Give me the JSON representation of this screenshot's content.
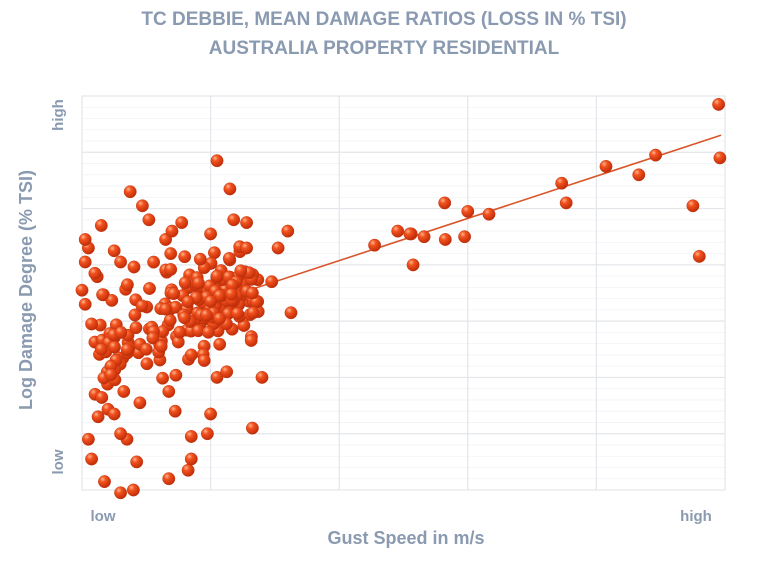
{
  "chart_data": {
    "type": "scatter",
    "title": "TC DEBBIE, MEAN DAMAGE RATIOS (LOSS IN % TSI)",
    "subtitle": "AUSTRALIA PROPERTY RESIDENTIAL",
    "xlabel": "Gust Speed in m/s",
    "ylabel": "Log Damage Degree (% TSI)",
    "x_tick_labels": [
      "low",
      "high"
    ],
    "y_tick_labels": [
      "low",
      "high"
    ],
    "xlim": [
      0,
      10
    ],
    "ylim": [
      0,
      7
    ],
    "grid": true,
    "colors": {
      "points": "#e8401a",
      "trendline": "#d9562b",
      "text": "#8a9ab0",
      "grid": "#e3e6ea"
    },
    "trendline": {
      "x": [
        1.72,
        9.93
      ],
      "y": [
        3.22,
        6.3
      ]
    },
    "points": [
      [
        9.9,
        6.85
      ],
      [
        9.92,
        5.9
      ],
      [
        8.92,
        5.95
      ],
      [
        8.66,
        5.6
      ],
      [
        8.15,
        5.75
      ],
      [
        6.33,
        4.9
      ],
      [
        6.0,
        4.95
      ],
      [
        5.64,
        5.1
      ],
      [
        5.65,
        4.45
      ],
      [
        9.6,
        4.15
      ],
      [
        9.5,
        5.05
      ],
      [
        7.46,
        5.45
      ],
      [
        7.53,
        5.1
      ],
      [
        5.12,
        4.55
      ],
      [
        5.32,
        4.5
      ],
      [
        4.91,
        4.6
      ],
      [
        5.1,
        4.55
      ],
      [
        5.95,
        4.5
      ],
      [
        5.15,
        4.0
      ],
      [
        4.55,
        4.35
      ],
      [
        2.1,
        5.85
      ],
      [
        2.3,
        5.35
      ],
      [
        2.36,
        4.8
      ],
      [
        2.56,
        4.75
      ],
      [
        2.56,
        4.3
      ],
      [
        2.65,
        3.5
      ],
      [
        2.66,
        3.15
      ],
      [
        2.0,
        3.35
      ],
      [
        2.1,
        3.8
      ],
      [
        1.9,
        3.95
      ],
      [
        1.84,
        4.1
      ],
      [
        1.3,
        4.45
      ],
      [
        1.38,
        4.2
      ],
      [
        1.04,
        4.8
      ],
      [
        0.94,
        5.05
      ],
      [
        0.75,
        5.3
      ],
      [
        0.6,
        4.05
      ],
      [
        0.5,
        4.25
      ],
      [
        0.3,
        4.7
      ],
      [
        0.1,
        4.3
      ],
      [
        0.05,
        4.45
      ],
      [
        0.0,
        3.55
      ],
      [
        0.2,
        3.85
      ],
      [
        0.05,
        3.3
      ],
      [
        0.15,
        2.95
      ],
      [
        0.3,
        2.5
      ],
      [
        0.45,
        2.2
      ],
      [
        0.65,
        1.75
      ],
      [
        0.5,
        1.35
      ],
      [
        0.25,
        1.3
      ],
      [
        0.1,
        0.9
      ],
      [
        0.15,
        0.55
      ],
      [
        0.35,
        0.15
      ],
      [
        0.6,
        -0.05
      ],
      [
        0.8,
        0.0
      ],
      [
        0.85,
        0.5
      ],
      [
        1.35,
        0.2
      ],
      [
        1.65,
        0.35
      ],
      [
        1.7,
        0.55
      ],
      [
        1.7,
        0.95
      ],
      [
        1.95,
        1.0
      ],
      [
        2.65,
        1.1
      ],
      [
        2.0,
        1.35
      ],
      [
        1.45,
        1.4
      ],
      [
        1.35,
        1.75
      ],
      [
        0.9,
        1.55
      ],
      [
        0.7,
        0.9
      ],
      [
        0.6,
        1.0
      ],
      [
        0.45,
        2.05
      ],
      [
        1.0,
        2.5
      ],
      [
        1.7,
        2.4
      ],
      [
        1.9,
        2.3
      ],
      [
        2.1,
        2.0
      ],
      [
        2.8,
        2.0
      ],
      [
        2.25,
        2.1
      ],
      [
        0.05,
        4.05
      ],
      [
        1.4,
        4.6
      ],
      [
        1.55,
        4.75
      ],
      [
        2.0,
        4.55
      ],
      [
        3.05,
        4.3
      ],
      [
        3.2,
        4.6
      ],
      [
        2.95,
        3.7
      ],
      [
        3.25,
        3.15
      ]
    ]
  }
}
